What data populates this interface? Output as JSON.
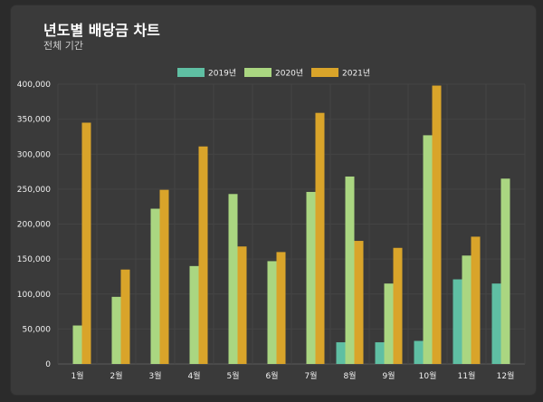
{
  "header": {
    "title": "년도별 배당금 차트",
    "subtitle": "전체 기간"
  },
  "colors": {
    "2019년": "#5fbfa3",
    "2020년": "#aad681",
    "2021년": "#d9a42a"
  },
  "chart_data": {
    "type": "bar",
    "title": "",
    "xlabel": "",
    "ylabel": "",
    "categories": [
      "1월",
      "2월",
      "3월",
      "4월",
      "5월",
      "6월",
      "7월",
      "8월",
      "9월",
      "10월",
      "11월",
      "12월"
    ],
    "series": [
      {
        "name": "2019년",
        "values": [
          0,
          0,
          0,
          0,
          0,
          0,
          0,
          31000,
          31000,
          33000,
          121000,
          115000
        ]
      },
      {
        "name": "2020년",
        "values": [
          55000,
          96000,
          222000,
          140000,
          243000,
          147000,
          246000,
          268000,
          115000,
          327000,
          155000,
          265000
        ]
      },
      {
        "name": "2021년",
        "values": [
          345000,
          135000,
          249000,
          311000,
          168000,
          160000,
          359000,
          176000,
          166000,
          398000,
          182000,
          0
        ]
      }
    ],
    "ylim": [
      0,
      400000
    ],
    "yticks": [
      "0",
      "50,000",
      "100,000",
      "150,000",
      "200,000",
      "250,000",
      "300,000",
      "350,000",
      "400,000"
    ],
    "grid": true,
    "legend": "top-center"
  }
}
